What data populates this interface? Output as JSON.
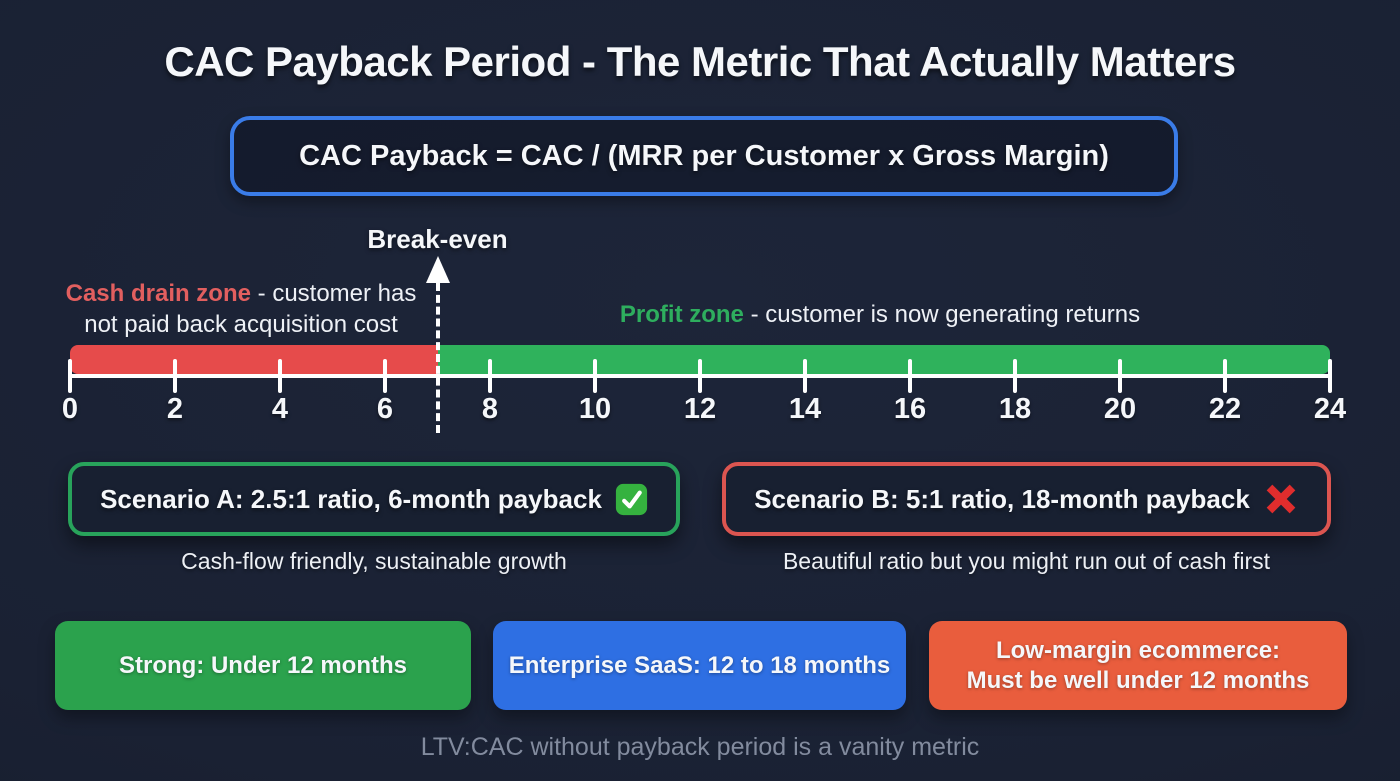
{
  "page": {
    "title": "CAC Payback Period - The Metric That Actually Matters",
    "footer_note": "LTV:CAC without payback period is a vanity metric",
    "background_color": "#1a2133"
  },
  "formula": {
    "text": "CAC Payback = CAC / (MRR per Customer x Gross Margin)",
    "border_color": "#3a7ce8"
  },
  "timeline": {
    "unit": "months",
    "min": 0,
    "max": 24,
    "tick_values": [
      0,
      2,
      4,
      6,
      8,
      10,
      12,
      14,
      16,
      18,
      20,
      22,
      24
    ],
    "break_even": {
      "label": "Break-even",
      "month": 7
    },
    "zones": [
      {
        "name": "cash-drain",
        "label": "Cash drain zone",
        "description": "- customer has not paid back acquisition cost",
        "range": [
          0,
          7
        ],
        "bar_color": "#e64b4b",
        "label_color": "#e25f5f"
      },
      {
        "name": "profit",
        "label": "Profit zone",
        "description": "- customer is now generating returns",
        "range": [
          7,
          24
        ],
        "bar_color": "#2fb25c",
        "label_color": "#2eae5e"
      }
    ]
  },
  "scenarios": [
    {
      "label": "Scenario A: 2.5:1 ratio, 6-month payback",
      "icon": "check",
      "border_color": "#28a35b",
      "caption": "Cash-flow friendly, sustainable growth"
    },
    {
      "label": "Scenario B: 5:1 ratio, 18-month payback",
      "icon": "cross",
      "border_color": "#dc5550",
      "caption": "Beautiful ratio but you might run out of cash first"
    }
  ],
  "benchmarks": [
    {
      "lines": [
        "Strong: Under 12 months"
      ],
      "color": "#2ba24d"
    },
    {
      "lines": [
        "Enterprise SaaS: 12 to 18 months"
      ],
      "color": "#2e6fe3"
    },
    {
      "lines": [
        "Low-margin ecommerce:",
        "Must be well under 12 months"
      ],
      "color": "#e95d3d"
    }
  ]
}
